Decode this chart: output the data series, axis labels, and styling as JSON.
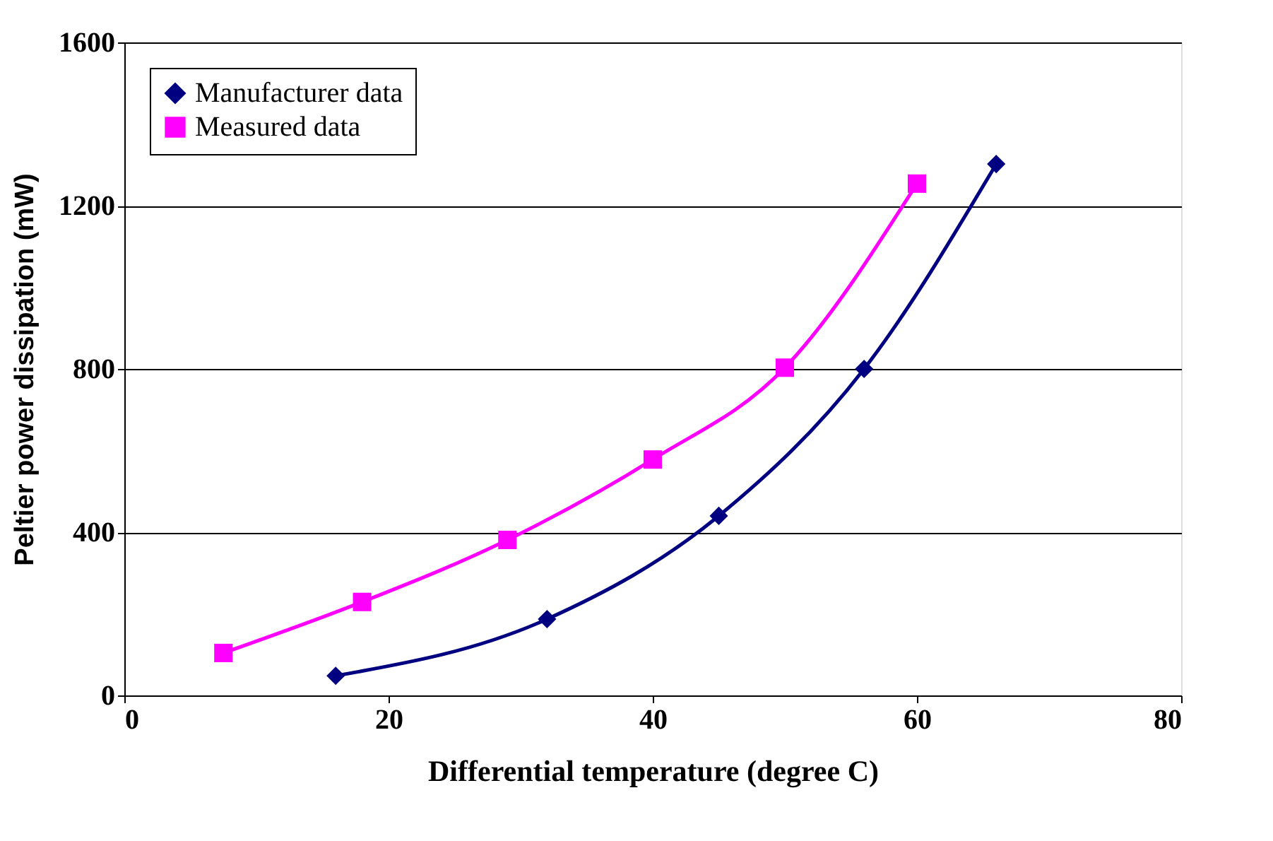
{
  "chart_data": {
    "type": "line",
    "xlabel": "Differential temperature (degree C)",
    "ylabel": "Peltier power dissipation (mW)",
    "xlim": [
      0,
      80
    ],
    "xticks": [
      0,
      20,
      40,
      60,
      80
    ],
    "ylim": [
      0,
      1600
    ],
    "yticks": [
      0,
      400,
      800,
      1200,
      1600
    ],
    "grid": "y",
    "legend": "top left",
    "series": [
      {
        "name": "Manufacturer data",
        "color": "#000080",
        "marker": "diamond",
        "x": [
          16,
          32,
          45,
          56,
          66
        ],
        "values": [
          48,
          187,
          440,
          800,
          1302
        ]
      },
      {
        "name": "Measured data",
        "color": "#ff00ff",
        "marker": "square",
        "x": [
          7.5,
          18,
          29,
          40,
          50,
          60
        ],
        "values": [
          104,
          229,
          381,
          578,
          803,
          1254
        ]
      }
    ]
  }
}
